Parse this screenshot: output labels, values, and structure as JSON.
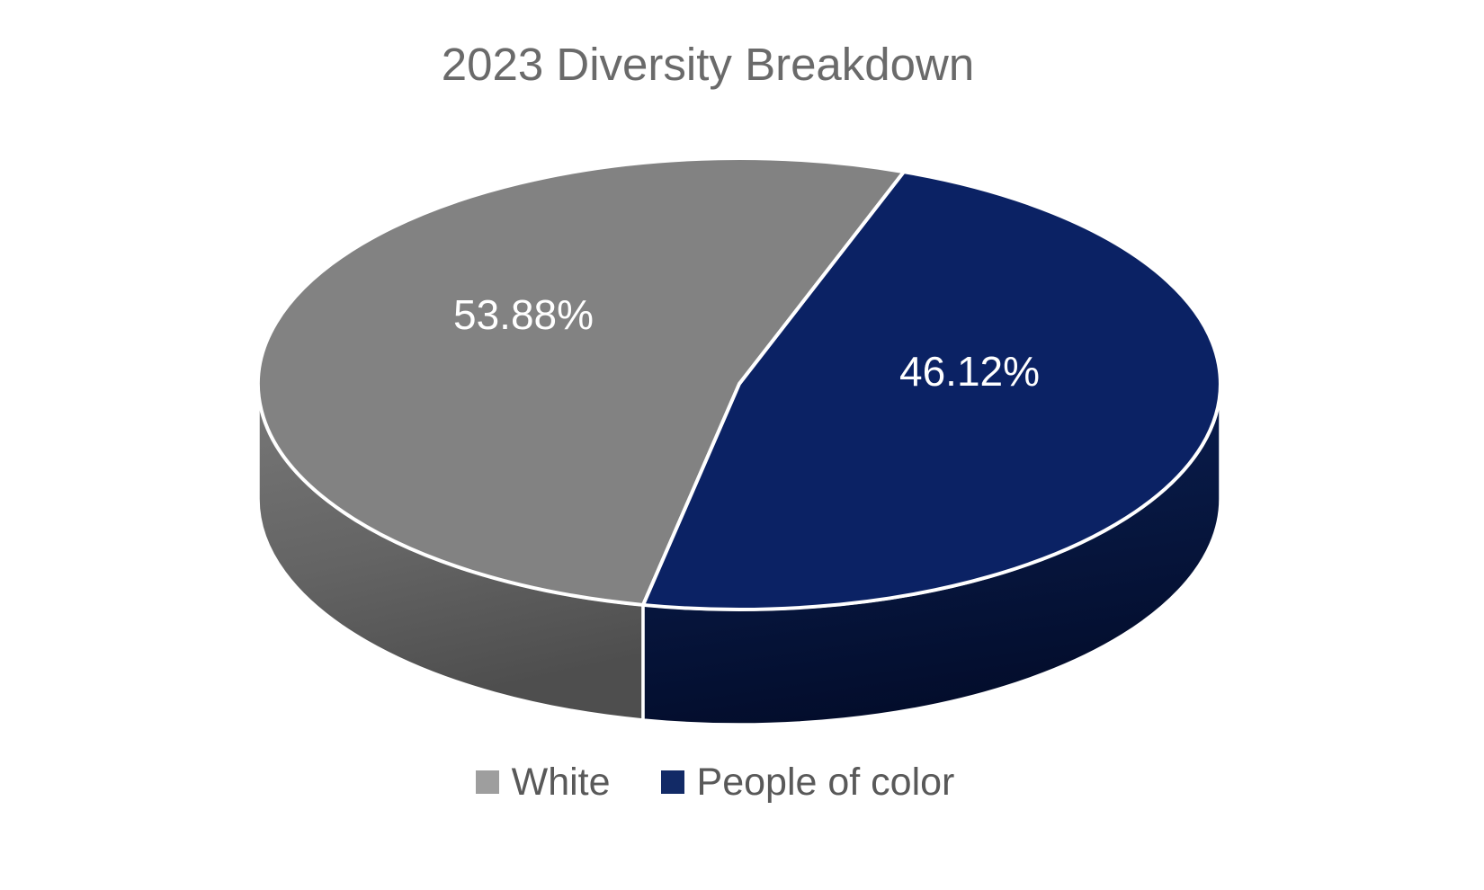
{
  "chart_data": {
    "type": "pie",
    "style": "3d",
    "title": "2023 Diversity Breakdown",
    "categories": [
      "White",
      "People of color"
    ],
    "values": [
      53.88,
      46.12
    ],
    "unit": "percent",
    "data_labels": [
      "53.88%",
      "46.12%"
    ],
    "slice_colors": [
      "#828282",
      "#0B2264"
    ],
    "legend_position": "bottom",
    "background_color": "#FFFFFF"
  },
  "legend": {
    "items": [
      {
        "label": "White",
        "color": "#9E9E9E"
      },
      {
        "label": "People of color",
        "color": "#122A66"
      }
    ]
  }
}
